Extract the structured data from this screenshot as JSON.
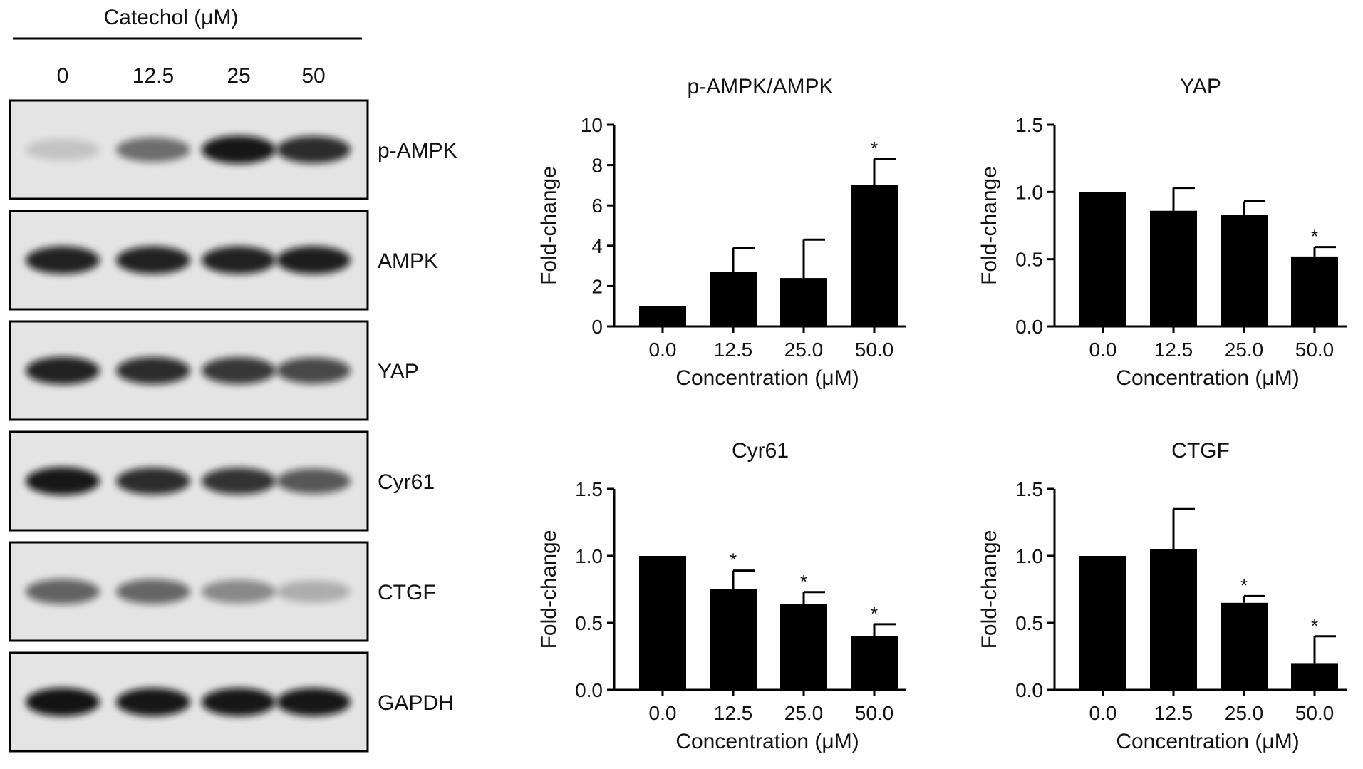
{
  "western_blot": {
    "treatment_label": "Catechol (μM)",
    "lanes": [
      "0",
      "12.5",
      "25",
      "50"
    ],
    "proteins": [
      {
        "name": "p-AMPK",
        "intensities": [
          0.15,
          0.55,
          0.95,
          0.85
        ]
      },
      {
        "name": "AMPK",
        "intensities": [
          0.9,
          0.9,
          0.9,
          0.92
        ]
      },
      {
        "name": "YAP",
        "intensities": [
          0.9,
          0.85,
          0.8,
          0.72
        ]
      },
      {
        "name": "Cyr61",
        "intensities": [
          0.95,
          0.85,
          0.82,
          0.65
        ]
      },
      {
        "name": "CTGF",
        "intensities": [
          0.6,
          0.58,
          0.42,
          0.25
        ]
      },
      {
        "name": "GAPDH",
        "intensities": [
          0.97,
          0.95,
          0.95,
          0.95
        ]
      }
    ]
  },
  "chart_data": [
    {
      "type": "bar",
      "title": "p-AMPK/AMPK",
      "xlabel": "Concentration (μM)",
      "ylabel": "Fold-change",
      "categories": [
        "0.0",
        "12.5",
        "25.0",
        "50.0"
      ],
      "values": [
        1.0,
        2.7,
        2.4,
        7.0
      ],
      "errors": [
        0.0,
        1.2,
        1.9,
        1.3
      ],
      "significant": [
        false,
        false,
        false,
        true
      ],
      "ylim": [
        0,
        10
      ],
      "yticks": [
        "0",
        "2",
        "4",
        "6",
        "8",
        "10"
      ],
      "grid": false
    },
    {
      "type": "bar",
      "title": "YAP",
      "xlabel": "Concentration (μM)",
      "ylabel": "Fold-change",
      "categories": [
        "0.0",
        "12.5",
        "25.0",
        "50.0"
      ],
      "values": [
        1.0,
        0.86,
        0.83,
        0.52
      ],
      "errors": [
        0.0,
        0.17,
        0.1,
        0.07
      ],
      "significant": [
        false,
        false,
        false,
        true
      ],
      "ylim": [
        0,
        1.5
      ],
      "yticks": [
        "0.0",
        "0.5",
        "1.0",
        "1.5"
      ],
      "grid": false
    },
    {
      "type": "bar",
      "title": "Cyr61",
      "xlabel": "Concentration (μM)",
      "ylabel": "Fold-change",
      "categories": [
        "0.0",
        "12.5",
        "25.0",
        "50.0"
      ],
      "values": [
        1.0,
        0.75,
        0.64,
        0.4
      ],
      "errors": [
        0.0,
        0.14,
        0.09,
        0.09
      ],
      "significant": [
        false,
        true,
        true,
        true
      ],
      "ylim": [
        0,
        1.5
      ],
      "yticks": [
        "0.0",
        "0.5",
        "1.0",
        "1.5"
      ],
      "grid": false
    },
    {
      "type": "bar",
      "title": "CTGF",
      "xlabel": "Concentration (μM)",
      "ylabel": "Fold-change",
      "categories": [
        "0.0",
        "12.5",
        "25.0",
        "50.0"
      ],
      "values": [
        1.0,
        1.05,
        0.65,
        0.2
      ],
      "errors": [
        0.0,
        0.3,
        0.05,
        0.2
      ],
      "significant": [
        false,
        false,
        true,
        true
      ],
      "ylim": [
        0,
        1.5
      ],
      "yticks": [
        "0.0",
        "0.5",
        "1.0",
        "1.5"
      ],
      "grid": false
    }
  ],
  "significance_marker": "*",
  "colors": {
    "bar": "#000000",
    "axis": "#000000",
    "blot_bg": "#e4e4e4",
    "band": "#0a0a0a"
  }
}
